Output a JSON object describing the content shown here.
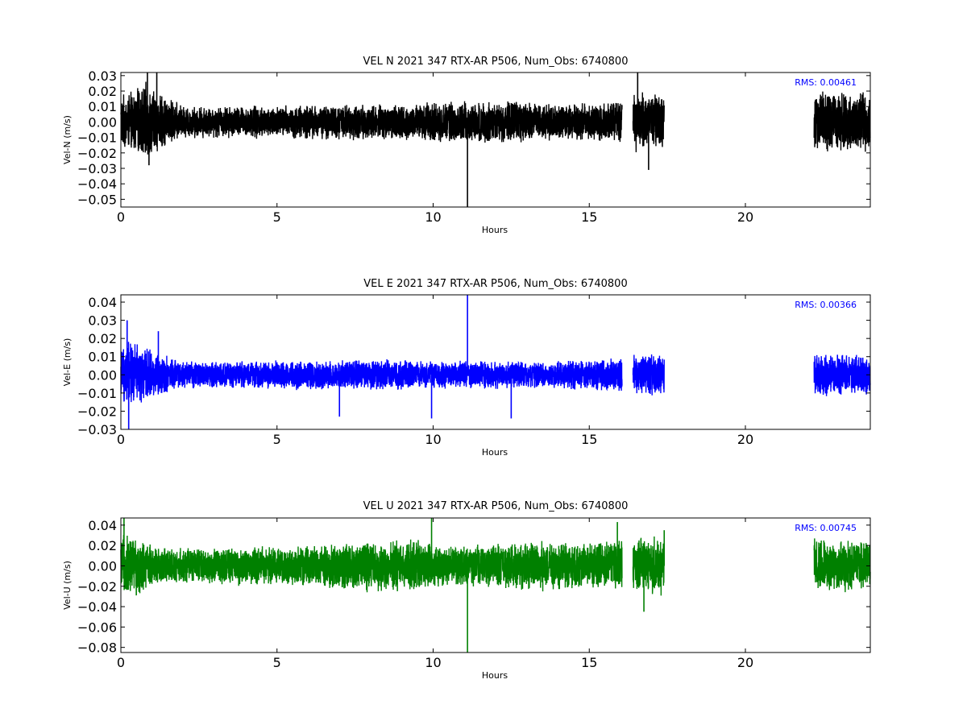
{
  "chart_data": [
    {
      "type": "line",
      "title": "VEL N 2021 347 RTX-AR  P506, Num_Obs: 6740800",
      "xlabel": "Hours",
      "ylabel": "Vel-N (m/s)",
      "color": "#000000",
      "xlim": [
        0,
        24
      ],
      "ylim": [
        -0.055,
        0.032
      ],
      "xticks": [
        0,
        5,
        10,
        15,
        20
      ],
      "xtick_labels": [
        "0",
        "5",
        "10",
        "15",
        "20"
      ],
      "yticks": [
        -0.05,
        -0.04,
        -0.03,
        -0.02,
        -0.01,
        0.0,
        0.01,
        0.02,
        0.03
      ],
      "ytick_labels": [
        "−0.05",
        "−0.04",
        "−0.03",
        "−0.02",
        "−0.01",
        "0.00",
        "0.01",
        "0.02",
        "0.03"
      ],
      "annotation": "RMS:  0.00461",
      "annotation_color": "#0000ff",
      "data_segments_hours": [
        [
          0,
          16.05
        ],
        [
          16.4,
          17.4
        ],
        [
          22.2,
          24
        ]
      ],
      "envelope": {
        "x": [
          0,
          0.3,
          0.8,
          1.2,
          2,
          4,
          6,
          8,
          10,
          11,
          12,
          13,
          14,
          16,
          16.4,
          17.4,
          22.2,
          23,
          24
        ],
        "amp": [
          0.018,
          0.02,
          0.026,
          0.02,
          0.011,
          0.011,
          0.012,
          0.012,
          0.013,
          0.014,
          0.015,
          0.014,
          0.012,
          0.014,
          0.02,
          0.02,
          0.02,
          0.022,
          0.02
        ]
      },
      "spikes": [
        {
          "x": 0.85,
          "y": 0.032
        },
        {
          "x": 1.15,
          "y": 0.032
        },
        {
          "x": 11.1,
          "y": -0.055
        },
        {
          "x": 16.55,
          "y": 0.032
        },
        {
          "x": 16.9,
          "y": -0.031
        },
        {
          "x": 0.9,
          "y": -0.028
        }
      ],
      "rms": 0.00461
    },
    {
      "type": "line",
      "title": "VEL E 2021 347 RTX-AR  P506, Num_Obs: 6740800",
      "xlabel": "Hours",
      "ylabel": "Vel-E (m/s)",
      "color": "#0000ff",
      "xlim": [
        0,
        24
      ],
      "ylim": [
        -0.03,
        0.044
      ],
      "xticks": [
        0,
        5,
        10,
        15,
        20
      ],
      "xtick_labels": [
        "0",
        "5",
        "10",
        "15",
        "20"
      ],
      "yticks": [
        -0.03,
        -0.02,
        -0.01,
        0.0,
        0.01,
        0.02,
        0.03,
        0.04
      ],
      "ytick_labels": [
        "−0.03",
        "−0.02",
        "−0.01",
        "0.00",
        "0.01",
        "0.02",
        "0.03",
        "0.04"
      ],
      "annotation": "RMS:  0.00366",
      "annotation_color": "#0000ff",
      "data_segments_hours": [
        [
          0,
          16.05
        ],
        [
          16.4,
          17.4
        ],
        [
          22.2,
          24
        ]
      ],
      "envelope": {
        "x": [
          0,
          0.3,
          1,
          2,
          4,
          6,
          8,
          10,
          12,
          14,
          16,
          16.4,
          17.4,
          22.2,
          24
        ],
        "amp": [
          0.016,
          0.02,
          0.014,
          0.008,
          0.008,
          0.009,
          0.009,
          0.008,
          0.008,
          0.008,
          0.01,
          0.012,
          0.012,
          0.012,
          0.012
        ]
      },
      "spikes": [
        {
          "x": 0.25,
          "y": -0.03
        },
        {
          "x": 0.2,
          "y": 0.03
        },
        {
          "x": 11.1,
          "y": 0.044
        },
        {
          "x": 12.5,
          "y": -0.024
        },
        {
          "x": 9.95,
          "y": -0.024
        },
        {
          "x": 7.0,
          "y": -0.023
        },
        {
          "x": 1.2,
          "y": 0.024
        }
      ],
      "rms": 0.00366
    },
    {
      "type": "line",
      "title": "VEL U 2021 347 RTX-AR  P506, Num_Obs: 6740800",
      "xlabel": "Hours",
      "ylabel": "Vel-U (m/s)",
      "color": "#008000",
      "xlim": [
        0,
        24
      ],
      "ylim": [
        -0.085,
        0.047
      ],
      "xticks": [
        0,
        5,
        10,
        15,
        20
      ],
      "xtick_labels": [
        "0",
        "5",
        "10",
        "15",
        "20"
      ],
      "yticks": [
        -0.08,
        -0.06,
        -0.04,
        -0.02,
        0.0,
        0.02,
        0.04
      ],
      "ytick_labels": [
        "−0.08",
        "−0.06",
        "−0.04",
        "−0.02",
        "0.00",
        "0.02",
        "0.04"
      ],
      "annotation": "RMS:  0.00745",
      "annotation_color": "#0000ff",
      "data_segments_hours": [
        [
          0,
          16.05
        ],
        [
          16.4,
          17.4
        ],
        [
          22.2,
          24
        ]
      ],
      "envelope": {
        "x": [
          0,
          0.3,
          1,
          2,
          4,
          6,
          7.5,
          8.5,
          9.5,
          10.5,
          12,
          13.5,
          15,
          16,
          16.4,
          17.4,
          22.2,
          24
        ],
        "amp": [
          0.03,
          0.035,
          0.022,
          0.018,
          0.02,
          0.02,
          0.026,
          0.028,
          0.026,
          0.02,
          0.022,
          0.026,
          0.022,
          0.028,
          0.03,
          0.03,
          0.028,
          0.025
        ]
      },
      "spikes": [
        {
          "x": 0.1,
          "y": 0.047
        },
        {
          "x": 11.1,
          "y": -0.085
        },
        {
          "x": 9.95,
          "y": 0.047
        },
        {
          "x": 16.75,
          "y": -0.045
        },
        {
          "x": 17.4,
          "y": 0.035
        },
        {
          "x": 15.9,
          "y": 0.043
        }
      ],
      "rms": 0.00745
    }
  ]
}
